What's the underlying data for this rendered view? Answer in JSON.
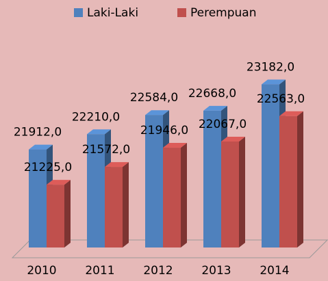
{
  "chart_data": {
    "type": "bar3d",
    "categories": [
      "2010",
      "2011",
      "2012",
      "2013",
      "2014"
    ],
    "series": [
      {
        "name": "Laki-Laki",
        "color": "#4f81bd",
        "values": [
          21912,
          22210,
          22584,
          22668,
          23182
        ],
        "value_labels": [
          "21912,0",
          "22210,0",
          "22584,0",
          "22668,0",
          "23182,0"
        ]
      },
      {
        "name": "Perempuan",
        "color": "#c0504d",
        "values": [
          21225,
          21572,
          21946,
          22067,
          22563
        ],
        "value_labels": [
          "21225,0",
          "21572,0",
          "21946,0",
          "22067,0",
          "22563,0"
        ]
      }
    ],
    "ylim": [
      20000,
      24000
    ],
    "legend": "top"
  }
}
